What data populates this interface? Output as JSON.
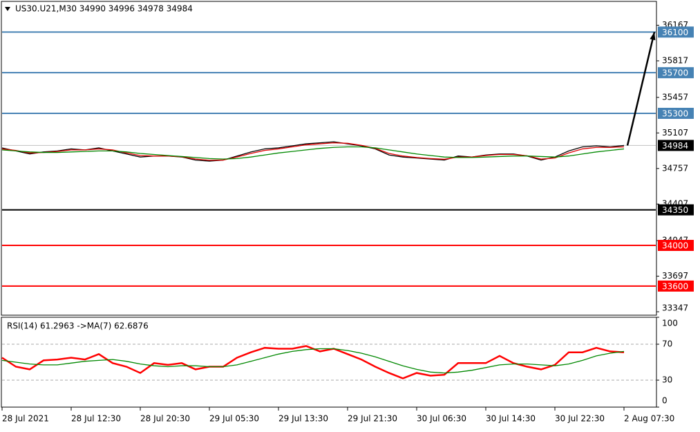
{
  "chart_data": [
    {
      "type": "line",
      "title": "US30.U21,M30 34990 34996 34978 34984",
      "categories": [
        "28 Jul 2021",
        null,
        null,
        null,
        null,
        "28 Jul 12:30",
        null,
        null,
        null,
        null,
        "28 Jul 20:30",
        null,
        null,
        null,
        null,
        "29 Jul 05:30",
        null,
        null,
        null,
        null,
        "29 Jul 13:30",
        null,
        null,
        null,
        null,
        "29 Jul 21:30",
        null,
        null,
        null,
        null,
        "30 Jul 06:30",
        null,
        null,
        null,
        null,
        "30 Jul 14:30",
        null,
        null,
        null,
        null,
        "30 Jul 22:30",
        null,
        null,
        null,
        null,
        "2 Aug 07:30"
      ],
      "series": [
        {
          "color": "#000000",
          "values": [
            34960,
            34930,
            34900,
            34920,
            34930,
            34950,
            34940,
            34960,
            34930,
            34900,
            34870,
            34880,
            34880,
            34870,
            34840,
            34830,
            34840,
            34880,
            34920,
            34950,
            34960,
            34980,
            35000,
            35010,
            35020,
            35000,
            34980,
            34950,
            34890,
            34870,
            34860,
            34850,
            34840,
            34880,
            34870,
            34890,
            34900,
            34900,
            34880,
            34840,
            34870,
            34930,
            34970,
            34980,
            34970,
            34984
          ]
        },
        {
          "color": "#e00000",
          "values": [
            34950,
            34935,
            34910,
            34915,
            34925,
            34940,
            34940,
            34950,
            34940,
            34910,
            34885,
            34880,
            34880,
            34872,
            34850,
            34838,
            34840,
            34870,
            34905,
            34935,
            34950,
            34970,
            34990,
            35000,
            35010,
            35005,
            34985,
            34955,
            34905,
            34880,
            34865,
            34855,
            34848,
            34870,
            34870,
            34885,
            34895,
            34895,
            34882,
            34850,
            34860,
            34910,
            34950,
            34965,
            34965,
            34970
          ]
        },
        {
          "color": "#008800",
          "values": [
            34940,
            34930,
            34920,
            34915,
            34915,
            34920,
            34925,
            34930,
            34930,
            34920,
            34905,
            34895,
            34885,
            34875,
            34865,
            34855,
            34850,
            34855,
            34870,
            34890,
            34910,
            34925,
            34940,
            34955,
            34965,
            34970,
            34970,
            34960,
            34940,
            34920,
            34900,
            34885,
            34870,
            34865,
            34865,
            34870,
            34875,
            34880,
            34880,
            34875,
            34870,
            34880,
            34900,
            34920,
            34935,
            34950
          ]
        }
      ],
      "ylim": [
        33320,
        36402
      ],
      "yticks": [
        33347,
        33697,
        34047,
        34407,
        34757,
        35107,
        35457,
        35817,
        36167
      ],
      "levels": [
        {
          "value": 36100,
          "color": "#4682b4"
        },
        {
          "value": 35700,
          "color": "#4682b4"
        },
        {
          "value": 35300,
          "color": "#4682b4"
        },
        {
          "value": 34350,
          "color": "#000000"
        },
        {
          "value": 34000,
          "color": "#ff0000"
        },
        {
          "value": 33600,
          "color": "#ff0000"
        }
      ],
      "current_price": {
        "value": 34984,
        "color": "#000000"
      }
    },
    {
      "type": "line",
      "title": "RSI(14) 61.2963 ->MA(7) 62.6876",
      "series": [
        {
          "color": "#ff0000",
          "values": [
            55,
            45,
            42,
            52,
            53,
            55,
            53,
            59,
            49,
            45,
            38,
            49,
            47,
            49,
            42,
            45,
            45,
            55,
            61,
            66,
            65,
            65,
            68,
            62,
            65,
            59,
            53,
            45,
            38,
            32,
            38,
            35,
            36,
            49,
            49,
            49,
            57,
            49,
            45,
            42,
            47,
            61,
            61,
            66,
            62,
            61
          ]
        },
        {
          "color": "#008800",
          "values": [
            52,
            50,
            48,
            47,
            47,
            49,
            51,
            52,
            53,
            51,
            48,
            46,
            45,
            46,
            46,
            45,
            45,
            47,
            51,
            55,
            59,
            62,
            64,
            65,
            65,
            63,
            60,
            56,
            51,
            46,
            42,
            39,
            38,
            39,
            41,
            44,
            47,
            48,
            48,
            47,
            46,
            48,
            52,
            57,
            60,
            62
          ]
        }
      ],
      "ylim": [
        0,
        100
      ],
      "yticks": [
        0,
        30,
        70,
        100
      ],
      "grid": "dashed"
    }
  ]
}
